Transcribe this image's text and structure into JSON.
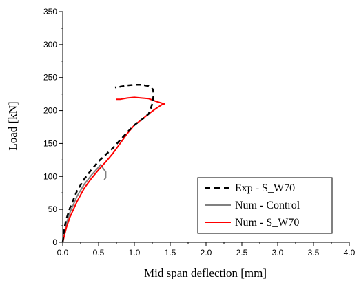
{
  "chart_data": {
    "type": "line",
    "xlabel": "Mid span deflection [mm]",
    "ylabel": "Load [kN]",
    "xlim": [
      0,
      4.0
    ],
    "ylim": [
      0,
      350
    ],
    "x_ticks": [
      "0.0",
      "0.5",
      "1.0",
      "1.5",
      "2.0",
      "2.5",
      "3.0",
      "3.5",
      "4.0"
    ],
    "y_ticks": [
      "0",
      "50",
      "100",
      "150",
      "200",
      "250",
      "300",
      "350"
    ],
    "grid": false,
    "legend_position": "bottom-right",
    "series": [
      {
        "name": "Exp - S_W70",
        "color": "#000000",
        "style": "dashed",
        "points": [
          [
            0.0,
            0
          ],
          [
            0.02,
            20
          ],
          [
            0.05,
            35
          ],
          [
            0.1,
            52
          ],
          [
            0.2,
            78
          ],
          [
            0.3,
            96
          ],
          [
            0.4,
            110
          ],
          [
            0.5,
            123
          ],
          [
            0.6,
            133
          ],
          [
            0.7,
            143
          ],
          [
            0.8,
            155
          ],
          [
            0.9,
            167
          ],
          [
            1.0,
            178
          ],
          [
            1.1,
            186
          ],
          [
            1.2,
            195
          ],
          [
            1.25,
            210
          ],
          [
            1.27,
            225
          ],
          [
            1.26,
            232
          ],
          [
            1.2,
            237
          ],
          [
            1.1,
            239
          ],
          [
            1.0,
            239
          ],
          [
            0.9,
            238
          ],
          [
            0.8,
            236
          ],
          [
            0.73,
            235
          ]
        ]
      },
      {
        "name": "Num - Control",
        "color": "#808080",
        "style": "solid",
        "points": [
          [
            0.0,
            0
          ],
          [
            0.05,
            28
          ],
          [
            0.1,
            45
          ],
          [
            0.2,
            70
          ],
          [
            0.3,
            88
          ],
          [
            0.4,
            102
          ],
          [
            0.5,
            114
          ],
          [
            0.53,
            118
          ],
          [
            0.56,
            113
          ],
          [
            0.6,
            107
          ],
          [
            0.6,
            98
          ],
          [
            0.58,
            95
          ]
        ]
      },
      {
        "name": "Num - S_W70",
        "color": "#ff0000",
        "style": "solid",
        "points": [
          [
            0.0,
            0
          ],
          [
            0.05,
            22
          ],
          [
            0.1,
            38
          ],
          [
            0.2,
            62
          ],
          [
            0.3,
            82
          ],
          [
            0.4,
            97
          ],
          [
            0.5,
            110
          ],
          [
            0.6,
            122
          ],
          [
            0.7,
            135
          ],
          [
            0.8,
            150
          ],
          [
            0.9,
            165
          ],
          [
            1.0,
            178
          ],
          [
            1.1,
            186
          ],
          [
            1.2,
            195
          ],
          [
            1.3,
            203
          ],
          [
            1.4,
            210
          ],
          [
            1.42,
            210
          ],
          [
            1.3,
            214
          ],
          [
            1.2,
            218
          ],
          [
            1.1,
            219
          ],
          [
            1.0,
            220
          ],
          [
            0.9,
            219
          ],
          [
            0.8,
            217
          ],
          [
            0.75,
            217
          ]
        ]
      }
    ]
  }
}
